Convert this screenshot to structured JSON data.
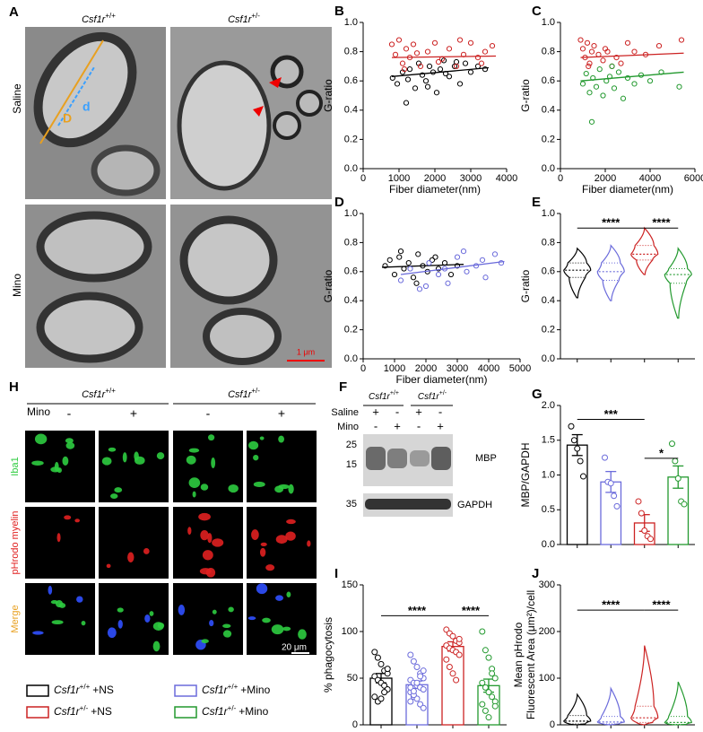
{
  "panel_A": {
    "label": "A",
    "columns": [
      {
        "gene": "Csf1r",
        "genotype": "+/+"
      },
      {
        "gene": "Csf1r",
        "genotype": "+/-"
      }
    ],
    "rows": [
      "Saline",
      "Mino"
    ],
    "image_labels": [
      "D",
      "d"
    ],
    "scale_bar": "1 μm"
  },
  "panel_H": {
    "label": "H",
    "columns": [
      {
        "gene": "Csf1r",
        "genotype": "+/+"
      },
      {
        "gene": "Csf1r",
        "genotype": "+/-"
      }
    ],
    "treatment": "Mino",
    "signs": [
      "-",
      "+",
      "-",
      "+"
    ],
    "rows": [
      "Iba1",
      "pHrodo myelin",
      "Merge"
    ],
    "scale_bar": "20 μm"
  },
  "panel_F": {
    "label": "F",
    "columns": [
      {
        "gene": "Csf1r",
        "genotype": "+/+"
      },
      {
        "gene": "Csf1r",
        "genotype": "+/-"
      }
    ],
    "rows": [
      {
        "name": "Saline",
        "signs": [
          "+",
          "-",
          "+",
          "-"
        ]
      },
      {
        "name": "Mino",
        "signs": [
          "-",
          "+",
          "-",
          "+"
        ]
      }
    ],
    "markers": [
      "25",
      "15",
      "35"
    ],
    "bands": [
      "MBP",
      "GAPDH"
    ]
  },
  "legend": [
    {
      "gene": "Csf1r",
      "genotype": "+/+",
      "treatment": "+NS",
      "color": "#000000"
    },
    {
      "gene": "Csf1r",
      "genotype": "+/+",
      "treatment": "+Mino",
      "color": "#6b6bdb"
    },
    {
      "gene": "Csf1r",
      "genotype": "+/-",
      "treatment": "+NS",
      "color": "#cc2222"
    },
    {
      "gene": "Csf1r",
      "genotype": "+/-",
      "treatment": "+Mino",
      "color": "#22992e"
    }
  ],
  "chart_data": [
    {
      "type": "scatter",
      "panel": "B",
      "xlabel": "Fiber diameter(nm)",
      "ylabel": "G-ratio",
      "xlim": [
        0,
        4000
      ],
      "xticks": [
        0,
        1000,
        2000,
        3000,
        4000
      ],
      "ylim": [
        0,
        1.0
      ],
      "yticks": [
        {
          "value": 0,
          "label": "0.0"
        },
        0.2,
        0.4,
        0.6,
        0.8,
        {
          "value": 1.0,
          "label": "1.0"
        }
      ],
      "series": [
        {
          "color": "#000000",
          "x": [
            820,
            950,
            1100,
            1200,
            1300,
            1450,
            1550,
            1650,
            1750,
            1850,
            1950,
            2050,
            2150,
            2250,
            2400,
            2550,
            2700,
            2850,
            3000,
            3200,
            3400,
            1250,
            1800,
            2300,
            2600
          ],
          "values": [
            0.62,
            0.58,
            0.66,
            0.45,
            0.68,
            0.55,
            0.72,
            0.64,
            0.6,
            0.7,
            0.66,
            0.52,
            0.68,
            0.74,
            0.63,
            0.7,
            0.58,
            0.72,
            0.66,
            0.7,
            0.68,
            0.61,
            0.56,
            0.65,
            0.73
          ],
          "fit": {
            "x": [
              800,
              3500
            ],
            "values": [
              0.63,
              0.69
            ]
          }
        },
        {
          "color": "#cc2222",
          "x": [
            800,
            900,
            1000,
            1100,
            1200,
            1300,
            1400,
            1600,
            1800,
            2000,
            2200,
            2400,
            2600,
            2800,
            3000,
            3200,
            3400,
            3600,
            1150,
            1500,
            2100,
            2700,
            3300
          ],
          "values": [
            0.85,
            0.78,
            0.88,
            0.72,
            0.82,
            0.76,
            0.85,
            0.7,
            0.8,
            0.86,
            0.75,
            0.82,
            0.7,
            0.78,
            0.86,
            0.76,
            0.8,
            0.84,
            0.68,
            0.79,
            0.73,
            0.88,
            0.72
          ],
          "fit": {
            "x": [
              800,
              3700
            ],
            "values": [
              0.76,
              0.77
            ]
          }
        }
      ]
    },
    {
      "type": "scatter",
      "panel": "C",
      "xlabel": "Fiber diameter(nm)",
      "ylabel": "G-ratio",
      "xlim": [
        0,
        6000
      ],
      "xticks": [
        0,
        2000,
        4000,
        6000
      ],
      "ylim": [
        0,
        1.0
      ],
      "yticks": [
        {
          "value": 0,
          "label": "0.0"
        },
        0.2,
        0.4,
        0.6,
        0.8,
        {
          "value": 1.0,
          "label": "1.0"
        }
      ],
      "series": [
        {
          "color": "#cc2222",
          "x": [
            900,
            1000,
            1100,
            1200,
            1300,
            1400,
            1500,
            1700,
            1900,
            2100,
            2300,
            2500,
            2700,
            3000,
            3300,
            3800,
            4400,
            5400,
            1250,
            2000
          ],
          "values": [
            0.88,
            0.82,
            0.76,
            0.86,
            0.72,
            0.8,
            0.84,
            0.78,
            0.74,
            0.8,
            0.7,
            0.76,
            0.72,
            0.86,
            0.8,
            0.78,
            0.84,
            0.88,
            0.7,
            0.82
          ],
          "fit": {
            "x": [
              900,
              5500
            ],
            "values": [
              0.76,
              0.79
            ]
          }
        },
        {
          "color": "#22992e",
          "x": [
            1000,
            1150,
            1300,
            1450,
            1600,
            1750,
            1900,
            2050,
            2200,
            2400,
            2600,
            2800,
            3000,
            3300,
            3600,
            4000,
            4500,
            5300,
            1400,
            2300
          ],
          "values": [
            0.58,
            0.65,
            0.52,
            0.62,
            0.56,
            0.68,
            0.5,
            0.6,
            0.63,
            0.55,
            0.66,
            0.48,
            0.62,
            0.58,
            0.64,
            0.6,
            0.66,
            0.56,
            0.32,
            0.7
          ],
          "fit": {
            "x": [
              900,
              5500
            ],
            "values": [
              0.6,
              0.66
            ]
          }
        }
      ]
    },
    {
      "type": "scatter",
      "panel": "D",
      "xlabel": "Fiber diameter(nm)",
      "ylabel": "G-ratio",
      "xlim": [
        0,
        5000
      ],
      "xticks": [
        0,
        1000,
        2000,
        3000,
        4000,
        5000
      ],
      "ylim": [
        0,
        1.0
      ],
      "yticks": [
        {
          "value": 0,
          "label": "0.0"
        },
        0.2,
        0.4,
        0.6,
        0.8,
        {
          "value": 1.0,
          "label": "1.0"
        }
      ],
      "series": [
        {
          "color": "#000000",
          "x": [
            700,
            850,
            1000,
            1150,
            1300,
            1450,
            1600,
            1750,
            1900,
            2050,
            2200,
            2400,
            2600,
            2800,
            3000,
            1200,
            1700,
            2300
          ],
          "values": [
            0.64,
            0.68,
            0.58,
            0.7,
            0.62,
            0.66,
            0.56,
            0.72,
            0.64,
            0.6,
            0.68,
            0.62,
            0.66,
            0.58,
            0.64,
            0.74,
            0.52,
            0.7
          ],
          "fit": {
            "x": [
              600,
              3200
            ],
            "values": [
              0.63,
              0.65
            ]
          }
        },
        {
          "color": "#6b6bdb",
          "x": [
            1200,
            1500,
            1800,
            2100,
            2400,
            2700,
            3000,
            3300,
            3600,
            3900,
            4200,
            4400,
            2000,
            2600,
            3200,
            3800
          ],
          "values": [
            0.54,
            0.62,
            0.48,
            0.66,
            0.58,
            0.52,
            0.7,
            0.6,
            0.64,
            0.56,
            0.72,
            0.66,
            0.5,
            0.62,
            0.74,
            0.68
          ],
          "fit": {
            "x": [
              1200,
              4500
            ],
            "values": [
              0.58,
              0.67
            ]
          }
        }
      ]
    },
    {
      "type": "violin",
      "panel": "E",
      "ylabel": "G-ratio",
      "categories": [
        null,
        null,
        null,
        null
      ],
      "ylim": [
        0,
        1.0
      ],
      "yticks": [
        {
          "value": 0,
          "label": "0.0"
        },
        0.2,
        0.4,
        0.6,
        0.8,
        {
          "value": 1.0,
          "label": "1.0"
        }
      ],
      "series": [
        {
          "color": "#000000",
          "min": 0.42,
          "q1": 0.56,
          "median": 0.61,
          "q3": 0.66,
          "max": 0.76
        },
        {
          "color": "#6b6bdb",
          "min": 0.4,
          "q1": 0.54,
          "median": 0.6,
          "q3": 0.66,
          "max": 0.78
        },
        {
          "color": "#cc2222",
          "min": 0.58,
          "q1": 0.68,
          "median": 0.72,
          "q3": 0.78,
          "max": 0.9
        },
        {
          "color": "#22992e",
          "min": 0.28,
          "q1": 0.52,
          "median": 0.58,
          "q3": 0.62,
          "max": 0.76
        }
      ],
      "annotations": [
        {
          "text": "****",
          "from": 0,
          "to": 2
        },
        {
          "text": "****",
          "from": 2,
          "to": 3
        }
      ]
    },
    {
      "type": "bar",
      "panel": "G",
      "ylabel": "MBP/GAPDH",
      "categories": [
        null,
        null,
        null,
        null
      ],
      "ylim": [
        0,
        2.0
      ],
      "yticks": [
        {
          "value": 0,
          "label": "0.0"
        },
        0.5,
        {
          "value": 1.0,
          "label": "1.0"
        },
        1.5,
        {
          "value": 2.0,
          "label": "2.0"
        }
      ],
      "colors": [
        "#000000",
        "#6b6bdb",
        "#cc2222",
        "#22992e"
      ],
      "values": [
        1.43,
        0.9,
        0.31,
        0.97
      ],
      "errors": [
        0.15,
        0.15,
        0.12,
        0.16
      ],
      "points": [
        [
          1.7,
          1.5,
          1.38,
          1.2,
          0.98
        ],
        [
          1.25,
          0.9,
          0.88,
          0.7,
          0.55
        ],
        [
          0.62,
          0.45,
          0.2,
          0.12,
          0.08
        ],
        [
          1.45,
          1.2,
          0.95,
          0.62,
          0.58
        ]
      ],
      "annotations": [
        {
          "text": "***",
          "from": 0,
          "to": 2
        },
        {
          "text": "*",
          "from": 2,
          "to": 3
        }
      ]
    },
    {
      "type": "bar",
      "panel": "I",
      "ylabel": "% phagocytosis",
      "categories": [
        null,
        null,
        null,
        null
      ],
      "ylim": [
        0,
        150
      ],
      "yticks": [
        0,
        50,
        100,
        150
      ],
      "colors": [
        "#000000",
        "#6b6bdb",
        "#cc2222",
        "#22992e"
      ],
      "values": [
        50,
        43,
        84,
        42
      ],
      "errors": [
        5,
        4,
        5,
        7
      ],
      "points": [
        [
          78,
          72,
          65,
          58,
          55,
          52,
          48,
          45,
          42,
          38,
          30,
          25,
          28,
          35,
          60
        ],
        [
          75,
          68,
          62,
          55,
          50,
          48,
          45,
          42,
          40,
          38,
          35,
          30,
          28,
          22,
          18,
          25,
          32,
          45,
          52,
          58,
          40,
          36
        ],
        [
          102,
          98,
          95,
          90,
          88,
          85,
          82,
          80,
          78,
          75,
          70,
          62,
          55,
          48,
          92
        ],
        [
          100,
          80,
          72,
          60,
          50,
          45,
          40,
          35,
          30,
          25,
          22,
          15,
          8,
          55,
          20
        ]
      ],
      "annotations": [
        {
          "text": "****",
          "from": 0,
          "to": 2
        },
        {
          "text": "****",
          "from": 2,
          "to": 3
        }
      ]
    },
    {
      "type": "violin",
      "panel": "J",
      "ylabel": [
        "Mean pHrodo",
        "Fluorescent  Area (μm²)/cell"
      ],
      "categories": [
        null,
        null,
        null,
        null
      ],
      "ylim": [
        0,
        300
      ],
      "yticks": [
        0,
        100,
        200,
        300
      ],
      "series": [
        {
          "color": "#000000",
          "min": 0,
          "q1": 2,
          "median": 8,
          "q3": 20,
          "max": 65
        },
        {
          "color": "#6b6bdb",
          "min": 0,
          "q1": 2,
          "median": 6,
          "q3": 18,
          "max": 78
        },
        {
          "color": "#cc2222",
          "min": 0,
          "q1": 5,
          "median": 15,
          "q3": 40,
          "max": 170
        },
        {
          "color": "#22992e",
          "min": 0,
          "q1": 1,
          "median": 5,
          "q3": 18,
          "max": 92
        }
      ],
      "annotations": [
        {
          "text": "****",
          "from": 0,
          "to": 2
        },
        {
          "text": "****",
          "from": 2,
          "to": 3
        }
      ]
    }
  ]
}
